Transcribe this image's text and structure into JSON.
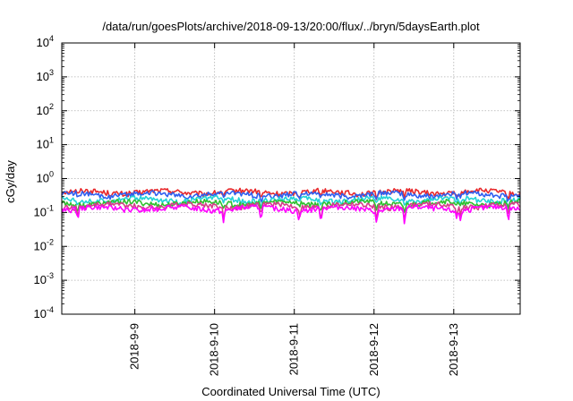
{
  "chart_data": {
    "type": "line",
    "title": "/data/run/goesPlots/archive/2018-09-13/20:00/flux/../bryn/5daysEarth.plot",
    "xlabel": "Coordinated Universal Time (UTC)",
    "ylabel": "cGy/day",
    "yscale": "log",
    "ylim": [
      0.0001,
      10000
    ],
    "y_ticks": [
      {
        "base": "10",
        "exp": "-4",
        "value": 0.0001
      },
      {
        "base": "10",
        "exp": "-3",
        "value": 0.001
      },
      {
        "base": "10",
        "exp": "-2",
        "value": 0.01
      },
      {
        "base": "10",
        "exp": "-1",
        "value": 0.1
      },
      {
        "base": "10",
        "exp": "0",
        "value": 1
      },
      {
        "base": "10",
        "exp": "1",
        "value": 10
      },
      {
        "base": "10",
        "exp": "2",
        "value": 100
      },
      {
        "base": "10",
        "exp": "3",
        "value": 1000
      },
      {
        "base": "10",
        "exp": "4",
        "value": 10000
      }
    ],
    "xlim": [
      "2018-09-08 02:00",
      "2018-09-13 20:00"
    ],
    "x_ticks": [
      "2018-9-9",
      "2018-9-10",
      "2018-9-11",
      "2018-9-12",
      "2018-9-13"
    ],
    "grid": true,
    "legend": "none",
    "series": [
      {
        "color": "#e8292c",
        "level": 0.4
      },
      {
        "color": "#2f5ff0",
        "level": 0.34
      },
      {
        "color": "#22d3d6",
        "level": 0.24
      },
      {
        "color": "#2fc02f",
        "level": 0.19
      },
      {
        "color": "#d63d8a",
        "level": 0.16
      },
      {
        "color": "#ff00ff",
        "level": 0.13
      }
    ],
    "dips": [
      {
        "day": 0.2,
        "depth": 0.45
      },
      {
        "day": 2.03,
        "depth": 0.5
      },
      {
        "day": 2.5,
        "depth": 0.55
      },
      {
        "day": 2.98,
        "depth": 0.45
      },
      {
        "day": 3.25,
        "depth": 0.5
      },
      {
        "day": 3.95,
        "depth": 0.6
      },
      {
        "day": 4.3,
        "depth": 0.6
      },
      {
        "day": 4.95,
        "depth": 0.35
      },
      {
        "day": 5.0,
        "depth": 0.4
      },
      {
        "day": 5.6,
        "depth": 0.55
      }
    ]
  }
}
